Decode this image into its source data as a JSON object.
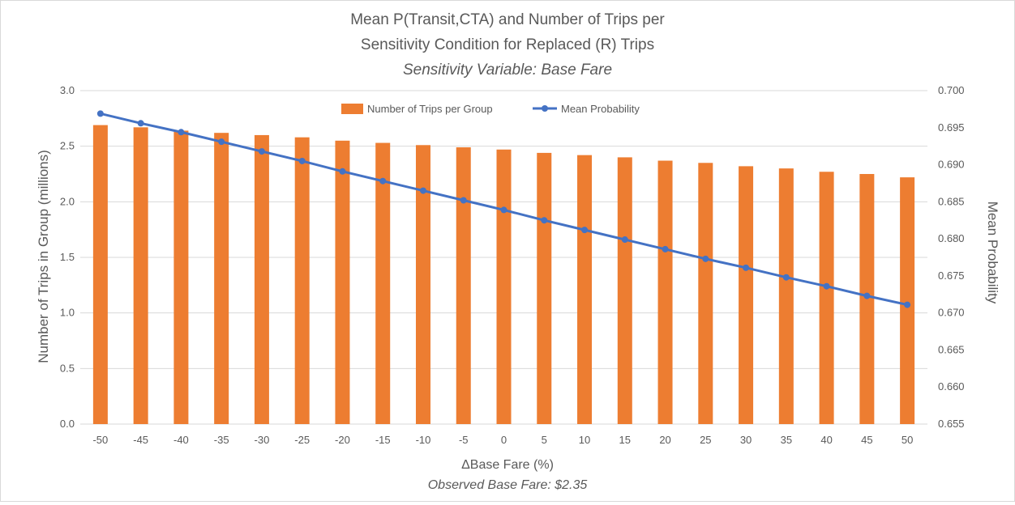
{
  "chart_data": {
    "type": "bar",
    "title_lines": [
      "Mean P(Transit,CTA) and Number of Trips per",
      "Sensitivity Condition for Replaced (R) Trips"
    ],
    "subtitle": "Sensitivity Variable: Base Fare",
    "xlabel": "ΔBase Fare (%)",
    "x_note": "Observed Base Fare: $2.35",
    "ylabel_left": "Number of Trips in Group (millions)",
    "ylabel_right": "Mean Probability",
    "categories": [
      "-50",
      "-45",
      "-40",
      "-35",
      "-30",
      "-25",
      "-20",
      "-15",
      "-10",
      "-5",
      "0",
      "5",
      "10",
      "15",
      "20",
      "25",
      "30",
      "35",
      "40",
      "45",
      "50"
    ],
    "series": [
      {
        "name": "Number of Trips per Group",
        "type": "bar",
        "axis": "left",
        "color": "#ed7d31",
        "values": [
          2.69,
          2.67,
          2.64,
          2.62,
          2.6,
          2.58,
          2.55,
          2.53,
          2.51,
          2.49,
          2.47,
          2.44,
          2.42,
          2.4,
          2.37,
          2.35,
          2.32,
          2.3,
          2.27,
          2.25,
          2.22
        ]
      },
      {
        "name": "Mean Probability",
        "type": "line",
        "axis": "right",
        "color": "#4472c4",
        "values": [
          0.6969,
          0.6956,
          0.6944,
          0.6931,
          0.6918,
          0.6905,
          0.6891,
          0.6878,
          0.6865,
          0.6852,
          0.6839,
          0.6825,
          0.6812,
          0.6799,
          0.6786,
          0.6773,
          0.6761,
          0.6748,
          0.6736,
          0.6723,
          0.6711
        ]
      }
    ],
    "ylim_left": [
      0,
      3.0
    ],
    "yticks_left": [
      "0.0",
      "0.5",
      "1.0",
      "1.5",
      "2.0",
      "2.5",
      "3.0"
    ],
    "ylim_right": [
      0.655,
      0.7
    ],
    "yticks_right": [
      "0.655",
      "0.660",
      "0.665",
      "0.670",
      "0.675",
      "0.680",
      "0.685",
      "0.690",
      "0.695",
      "0.700"
    ],
    "grid": true,
    "legend_position": "top-center",
    "gridline_color": "#d9d9d9",
    "text_color": "#595959"
  }
}
